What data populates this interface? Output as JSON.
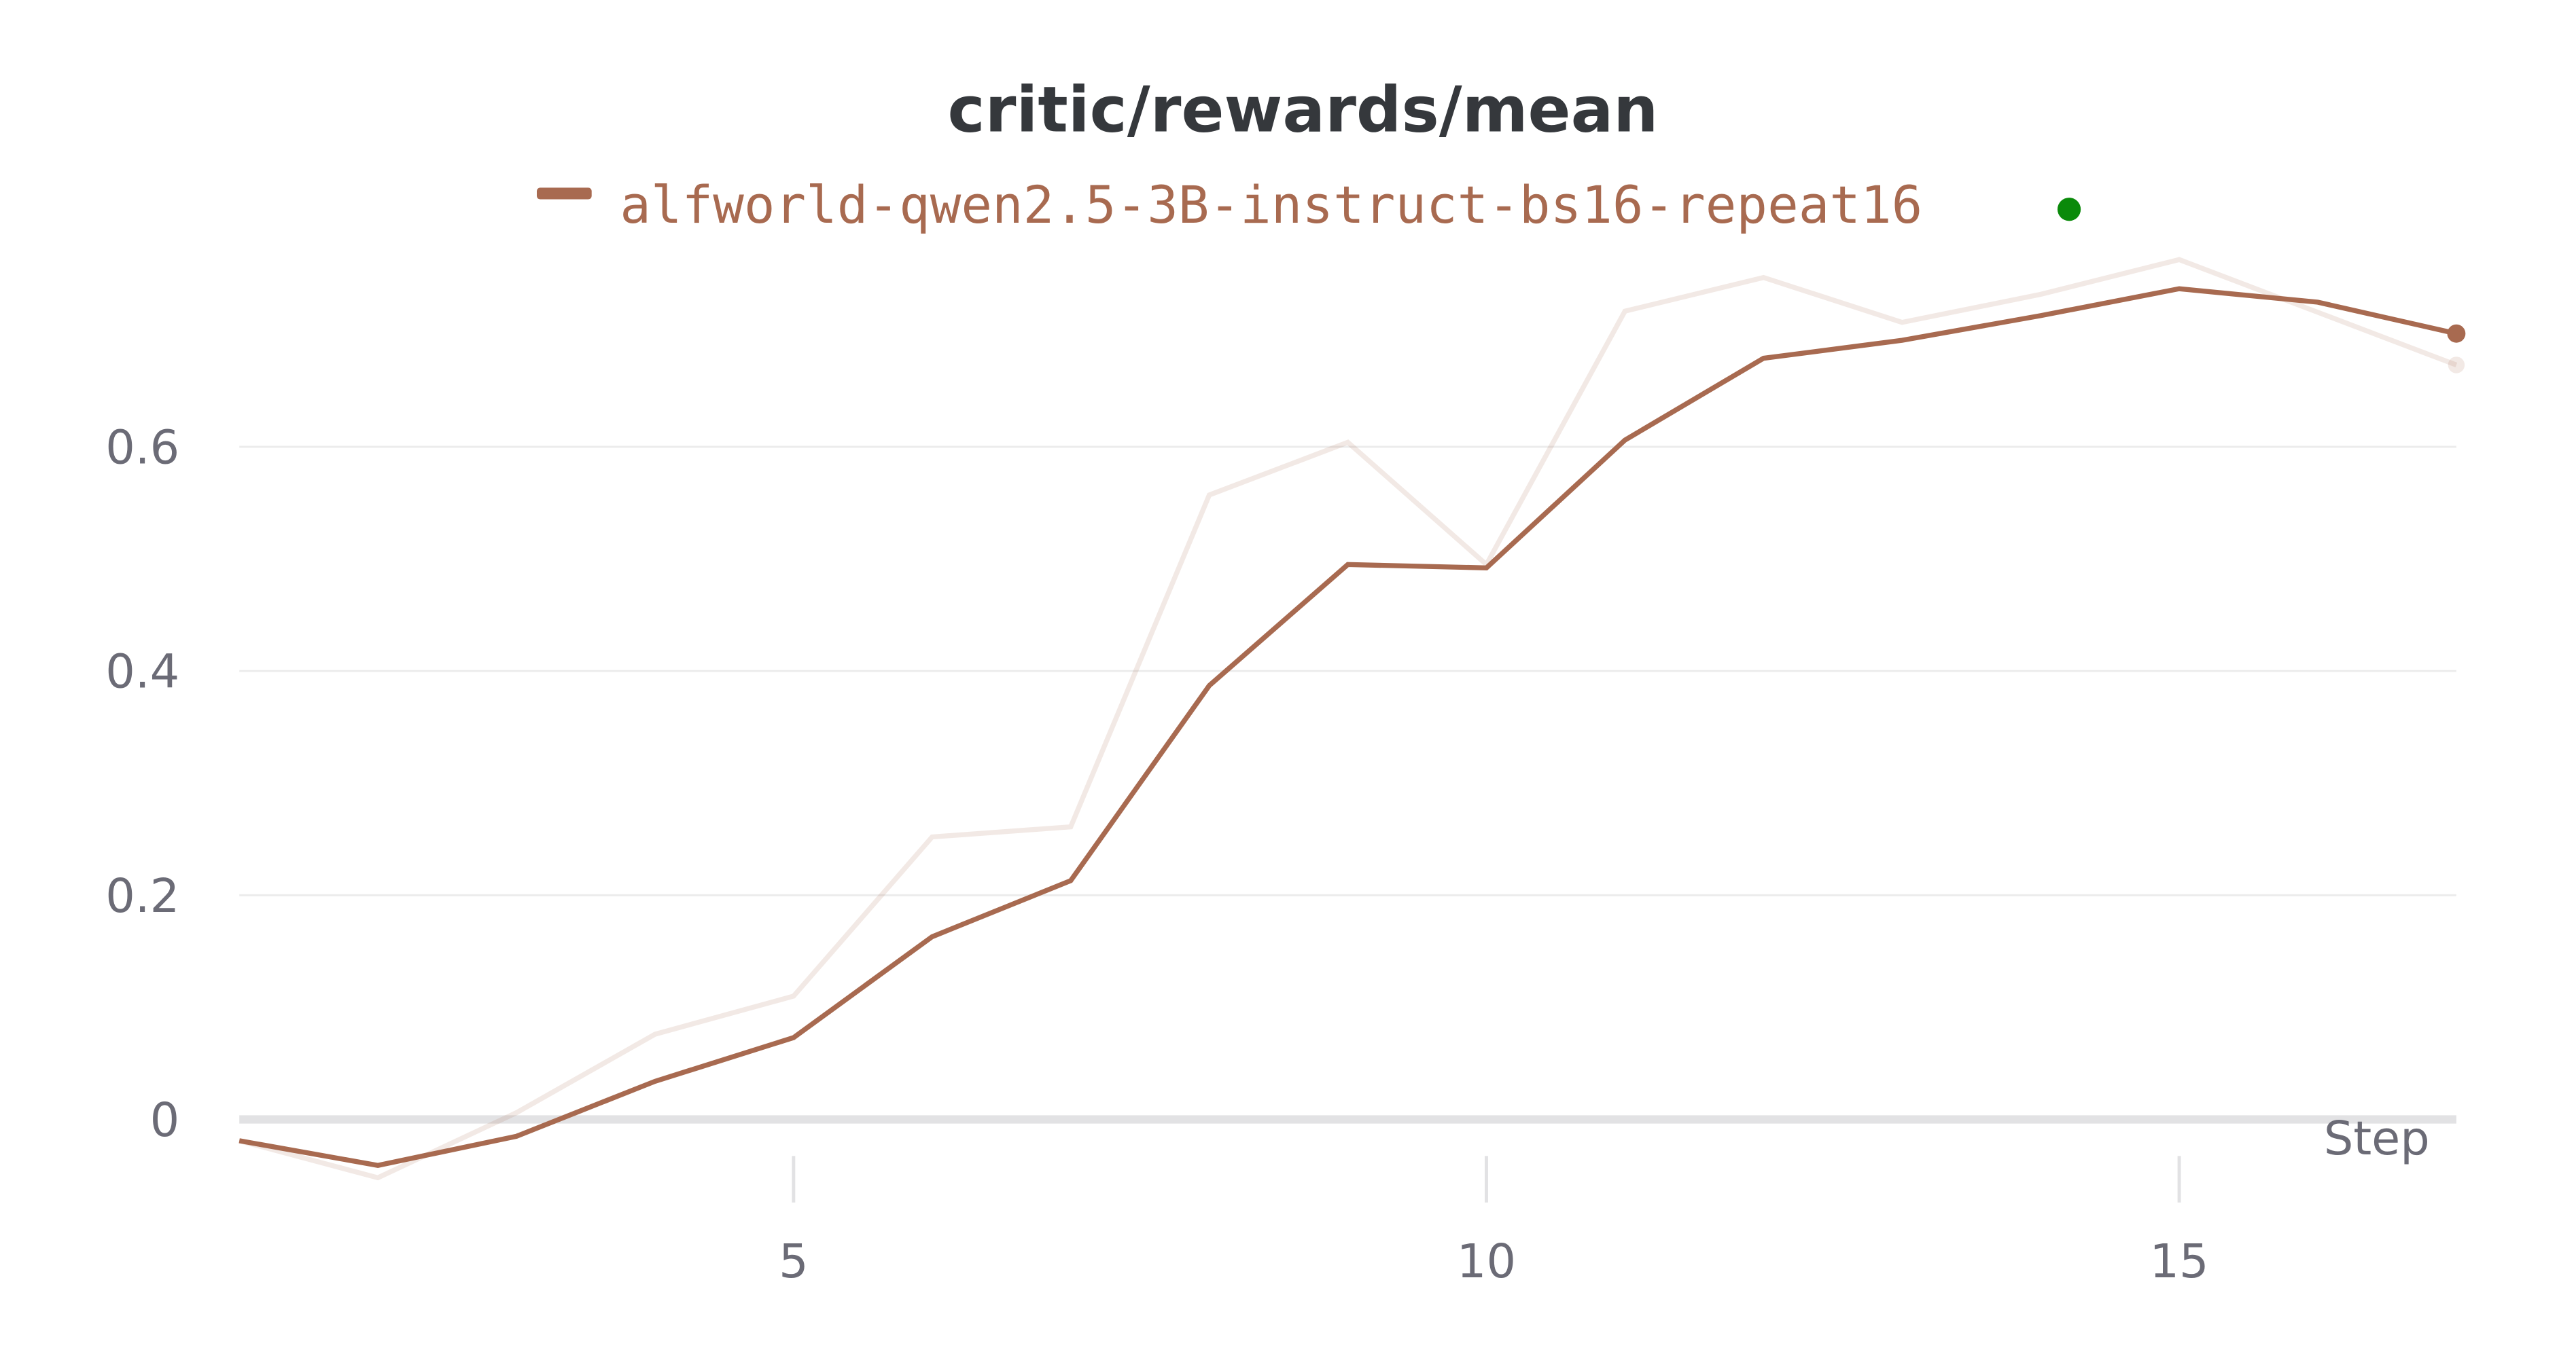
{
  "chart_data": {
    "type": "line",
    "title": "critic/rewards/mean",
    "xlabel": "Step",
    "ylabel": "",
    "xlim": [
      1,
      17
    ],
    "ylim": [
      -0.06,
      0.8
    ],
    "x_ticks": [
      5,
      10,
      15
    ],
    "y_ticks": [
      0,
      0.2,
      0.4,
      0.6
    ],
    "y_tick_labels": [
      "0",
      "0.2",
      "0.4",
      "0.6"
    ],
    "x_tick_labels": [
      "5",
      "10",
      "15"
    ],
    "grid": true,
    "legend_placement": "top-center",
    "x": [
      1,
      2,
      3,
      4,
      5,
      6,
      7,
      8,
      9,
      10,
      11,
      12,
      13,
      14,
      15,
      16,
      17
    ],
    "series": [
      {
        "name": "alfworld-qwen2.5-3B-instruct-bs16-repeat16",
        "color": "#a86a50",
        "smoothed": [
          -0.019,
          -0.041,
          -0.015,
          0.034,
          0.073,
          0.163,
          0.213,
          0.387,
          0.495,
          0.492,
          0.606,
          0.679,
          0.695,
          0.717,
          0.741,
          0.729,
          0.701
        ],
        "raw": [
          -0.019,
          -0.052,
          0.006,
          0.076,
          0.11,
          0.252,
          0.261,
          0.557,
          0.604,
          0.495,
          0.721,
          0.751,
          0.711,
          0.736,
          0.767,
          0.72,
          0.673
        ]
      }
    ],
    "status_dot_color": "#0a8a0a"
  }
}
